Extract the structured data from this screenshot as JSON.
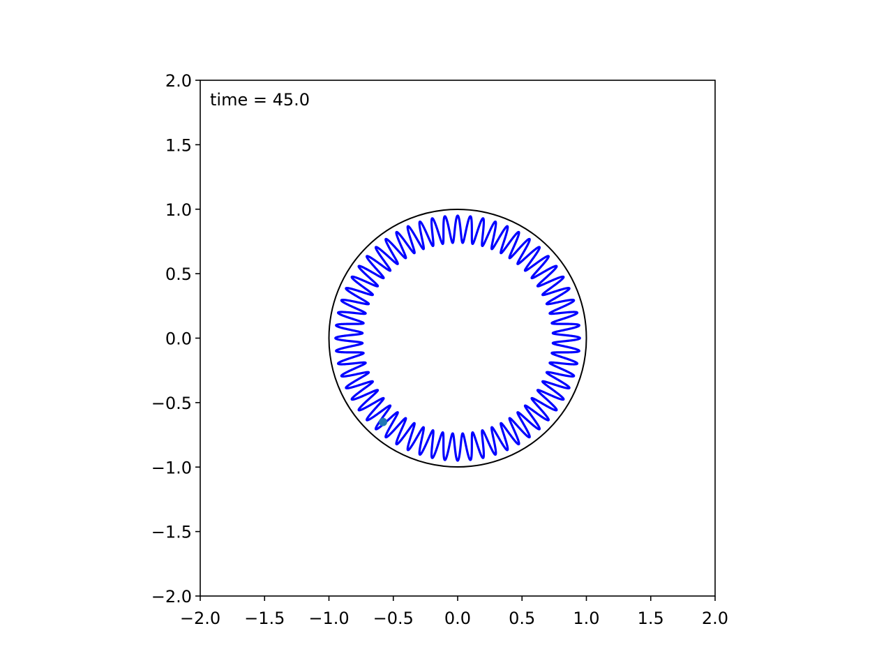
{
  "chart_data": {
    "type": "line",
    "title": "",
    "xlabel": "",
    "ylabel": "",
    "xlim": [
      -2.0,
      2.0
    ],
    "ylim": [
      -2.0,
      2.0
    ],
    "aspect": "equal",
    "grid": false,
    "legend": "none",
    "x_ticks": [
      -2.0,
      -1.5,
      -1.0,
      -0.5,
      0.0,
      0.5,
      1.0,
      1.5,
      2.0
    ],
    "x_tick_labels": [
      "−2.0",
      "−1.5",
      "−1.0",
      "−0.5",
      "0.0",
      "0.5",
      "1.0",
      "1.5",
      "2.0"
    ],
    "y_ticks": [
      -2.0,
      -1.5,
      -1.0,
      -0.5,
      0.0,
      0.5,
      1.0,
      1.5,
      2.0
    ],
    "y_tick_labels": [
      "−2.0",
      "−1.5",
      "−1.0",
      "−0.5",
      "0.0",
      "0.5",
      "1.0",
      "1.5",
      "2.0"
    ],
    "annotation": "time = 45.0",
    "boundary_circle": {
      "center": [
        0.0,
        0.0
      ],
      "radius": 1.0,
      "color": "#000000"
    },
    "trajectory": {
      "color": "#0000ff",
      "r_min": 0.74,
      "r_max": 0.95,
      "rosette_lobes": 60,
      "revolutions": 1.6
    },
    "particle": {
      "x": -0.58,
      "y": -0.65,
      "color": "#1f77b4"
    }
  }
}
